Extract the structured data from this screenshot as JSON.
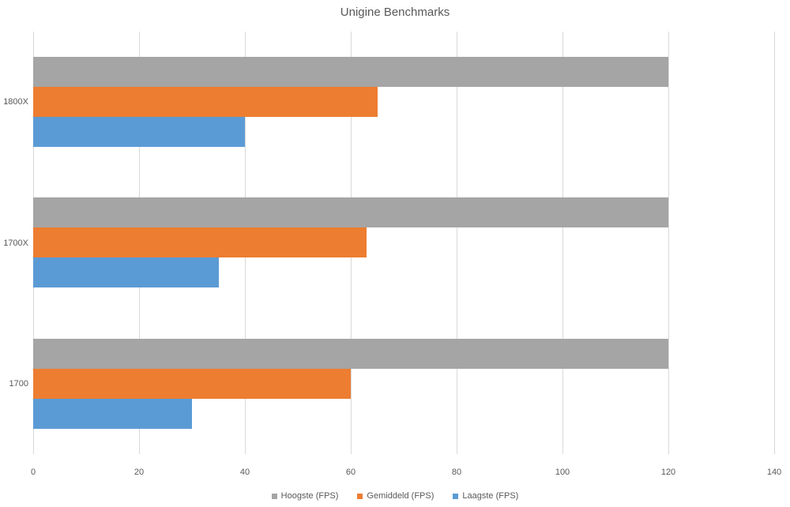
{
  "title": "Unigine Benchmarks",
  "chart_data": {
    "type": "bar",
    "orientation": "horizontal",
    "title": "Unigine Benchmarks",
    "categories": [
      "1800X",
      "1700X",
      "1700"
    ],
    "series": [
      {
        "name": "Hoogste (FPS)",
        "color": "#a5a5a5",
        "values": [
          120,
          120,
          120
        ]
      },
      {
        "name": "Gemiddeld (FPS)",
        "color": "#ed7d31",
        "values": [
          65,
          63,
          60
        ]
      },
      {
        "name": "Laagste (FPS)",
        "color": "#5b9bd5",
        "values": [
          40,
          35,
          30
        ]
      }
    ],
    "xlabel": "",
    "ylabel": "",
    "xlim": [
      0,
      140
    ],
    "x_ticks": [
      0,
      20,
      40,
      60,
      80,
      100,
      120,
      140
    ],
    "grid": true,
    "legend_position": "bottom"
  },
  "colors": {
    "text": "#595959",
    "gridline": "#d9d9d9",
    "background": "#ffffff"
  }
}
